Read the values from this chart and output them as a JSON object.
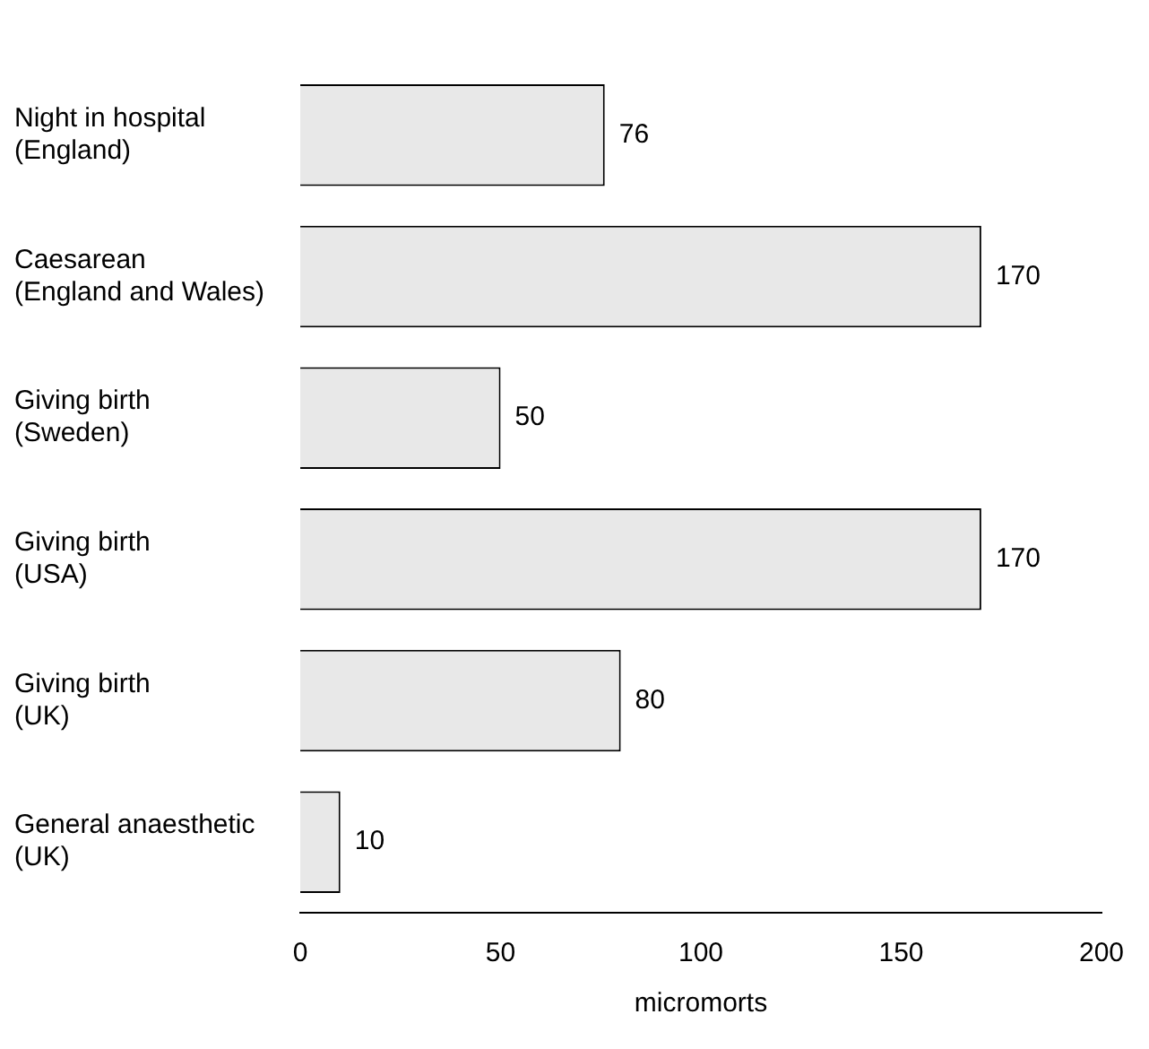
{
  "chart_data": {
    "type": "bar",
    "orientation": "horizontal",
    "xlabel": "micromorts",
    "categories": [
      "Night in hospital\n(England)",
      "Caesarean\n(England and Wales)",
      "Giving birth\n(Sweden)",
      "Giving birth\n(USA)",
      "Giving birth\n(UK)",
      "General anaesthetic\n(UK)"
    ],
    "values": [
      76,
      170,
      50,
      170,
      80,
      10
    ],
    "color": "#e8e8e8",
    "xlim": [
      0,
      200
    ],
    "xticks": [
      0,
      50,
      100,
      150,
      200
    ],
    "data_labels": true,
    "grid": false,
    "legend": false
  }
}
